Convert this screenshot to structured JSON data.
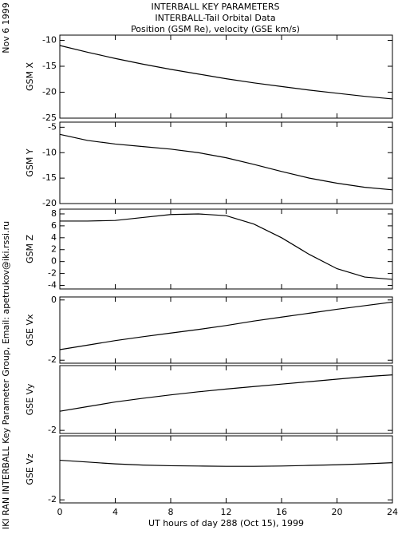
{
  "header": {
    "lines": [
      "INTERBALL KEY PARAMETERS",
      "INTERBALL-Tail Orbital Data",
      "Position (GSM Re), velocity (GSE km/s)"
    ]
  },
  "side": {
    "date": "Nov  6 1999",
    "credit": "IKI RAN INTERBALL Key Parameter Group, Email: apetrukov@iki.rssi.ru"
  },
  "chart_data": [
    {
      "type": "line",
      "ylabel": "GSM X",
      "x": [
        0,
        2,
        4,
        6,
        8,
        10,
        12,
        14,
        16,
        18,
        20,
        22,
        24
      ],
      "series": [
        {
          "color": "#000000",
          "values": [
            -11,
            -12.3,
            -13.5,
            -14.6,
            -15.6,
            -16.5,
            -17.4,
            -18.2,
            -18.9,
            -19.6,
            -20.2,
            -20.8,
            -21.3
          ]
        }
      ],
      "xlim": [
        0,
        24
      ],
      "xticks": [
        0,
        4,
        8,
        12,
        16,
        20,
        24
      ],
      "ylim": [
        -25,
        -9
      ],
      "yticks": [
        -10,
        -15,
        -20,
        -25
      ]
    },
    {
      "type": "line",
      "ylabel": "GSM Y",
      "x": [
        0,
        2,
        4,
        6,
        8,
        10,
        12,
        14,
        16,
        18,
        20,
        22,
        24
      ],
      "series": [
        {
          "color": "#000000",
          "values": [
            -6.4,
            -7.6,
            -8.3,
            -8.8,
            -9.3,
            -10,
            -11,
            -12.3,
            -13.7,
            -15,
            -16,
            -16.8,
            -17.3
          ]
        }
      ],
      "xlim": [
        0,
        24
      ],
      "xticks": [
        0,
        4,
        8,
        12,
        16,
        20,
        24
      ],
      "ylim": [
        -20,
        -4
      ],
      "yticks": [
        -5,
        -10,
        -15,
        -20
      ]
    },
    {
      "type": "line",
      "ylabel": "GSM Z",
      "x": [
        0,
        2,
        4,
        6,
        8,
        10,
        12,
        14,
        16,
        18,
        20,
        22,
        24
      ],
      "series": [
        {
          "color": "#000000",
          "values": [
            6.8,
            6.8,
            6.9,
            7.4,
            7.9,
            8,
            7.7,
            6.3,
            4,
            1.2,
            -1.2,
            -2.6,
            -3
          ]
        }
      ],
      "xlim": [
        0,
        24
      ],
      "xticks": [
        0,
        4,
        8,
        12,
        16,
        20,
        24
      ],
      "ylim": [
        -4.6,
        8.8
      ],
      "yticks": [
        8,
        6,
        4,
        2,
        0,
        -2,
        -4
      ]
    },
    {
      "type": "line",
      "ylabel": "GSE Vx",
      "x": [
        0,
        2,
        4,
        6,
        8,
        10,
        12,
        14,
        16,
        18,
        20,
        22,
        24
      ],
      "series": [
        {
          "color": "#000000",
          "values": [
            -1.65,
            -1.5,
            -1.35,
            -1.22,
            -1.1,
            -0.98,
            -0.85,
            -0.7,
            -0.57,
            -0.44,
            -0.31,
            -0.19,
            -0.07
          ]
        }
      ],
      "xlim": [
        0,
        24
      ],
      "xticks": [
        0,
        4,
        8,
        12,
        16,
        20,
        24
      ],
      "ylim": [
        -2.1,
        0.1
      ],
      "yticks": [
        0,
        -2
      ]
    },
    {
      "type": "line",
      "ylabel": "GSE Vy",
      "x": [
        0,
        2,
        4,
        6,
        8,
        10,
        12,
        14,
        16,
        18,
        20,
        22,
        24
      ],
      "series": [
        {
          "color": "#000000",
          "values": [
            -1.38,
            -1.23,
            -1.08,
            -0.96,
            -0.85,
            -0.75,
            -0.66,
            -0.58,
            -0.5,
            -0.42,
            -0.34,
            -0.26,
            -0.2
          ]
        }
      ],
      "xlim": [
        0,
        24
      ],
      "xticks": [
        0,
        4,
        8,
        12,
        16,
        20,
        24
      ],
      "ylim": [
        -2.1,
        0.1
      ],
      "yticks": [
        -2
      ]
    },
    {
      "type": "line",
      "ylabel": "GSE Vz",
      "xlabel": "UT hours of day 288 (Oct 15), 1999",
      "x": [
        0,
        2,
        4,
        6,
        8,
        10,
        12,
        14,
        16,
        18,
        20,
        22,
        24
      ],
      "series": [
        {
          "color": "#000000",
          "values": [
            -0.7,
            -0.76,
            -0.82,
            -0.86,
            -0.88,
            -0.89,
            -0.9,
            -0.9,
            -0.89,
            -0.87,
            -0.85,
            -0.82,
            -0.78
          ]
        }
      ],
      "xlim": [
        0,
        24
      ],
      "xticks": [
        0,
        4,
        8,
        12,
        16,
        20,
        24
      ],
      "ylim": [
        -2.1,
        0.1
      ],
      "yticks": [
        -2
      ]
    }
  ]
}
